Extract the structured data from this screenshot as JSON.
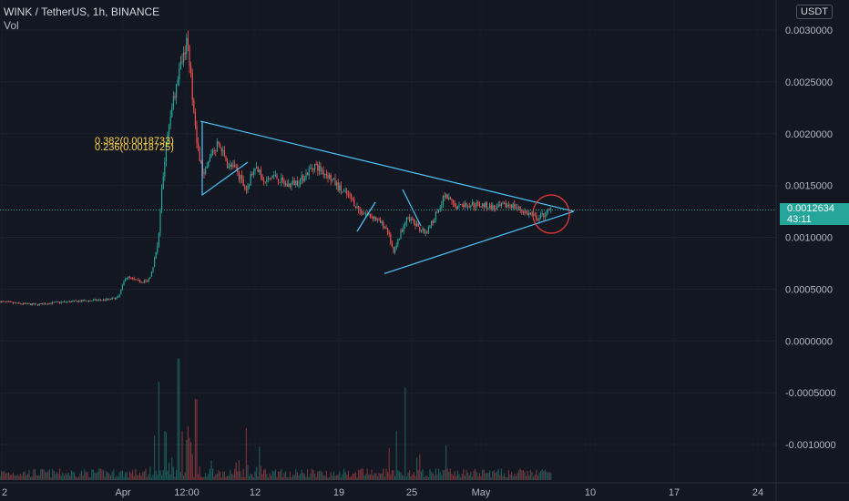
{
  "header": {
    "title": "WINK / TetherUS, 1h, BINANCE",
    "volume_label": "Vol",
    "currency_button": "USDT"
  },
  "price_tag": {
    "price": "0.0012634",
    "countdown": "43:11"
  },
  "fib_labels": [
    "0.382(0.0018733)",
    "0.236(0.0018725)"
  ],
  "colors": {
    "background": "#131722",
    "up": "#26a69a",
    "down": "#ef5350",
    "trendline": "#4fc3f7",
    "circle": "#e53935",
    "fib": "#ffd54f",
    "axis_text": "#b2b5be"
  },
  "chart_data": {
    "type": "candlestick",
    "title": "WINK / TetherUS, 1h, BINANCE",
    "y_axis": {
      "ticks": [
        "0.0030000",
        "0.0025000",
        "0.0020000",
        "0.0015000",
        "0.0010000",
        "0.0005000",
        "0.0000000",
        "-0.0005000",
        "-0.0010000"
      ],
      "tick_values": [
        0.003,
        0.0025,
        0.002,
        0.0015,
        0.001,
        0.0005,
        0,
        -0.0005,
        -0.001
      ],
      "range": [
        -0.00147,
        0.00323
      ]
    },
    "x_axis": {
      "ticks": [
        "2",
        "Apr",
        "12:00",
        "12",
        "19",
        "25",
        "May",
        "10",
        "17",
        "24"
      ]
    },
    "last_price": 0.0012634,
    "price_path": [
      [
        0,
        0.00038
      ],
      [
        20,
        0.00036
      ],
      [
        40,
        0.00035
      ],
      [
        60,
        0.00037
      ],
      [
        80,
        0.00038
      ],
      [
        100,
        0.00039
      ],
      [
        120,
        0.0004
      ],
      [
        130,
        0.00042
      ],
      [
        138,
        0.00062
      ],
      [
        150,
        0.00058
      ],
      [
        162,
        0.00057
      ],
      [
        168,
        0.0007
      ],
      [
        174,
        0.001
      ],
      [
        178,
        0.0015
      ],
      [
        184,
        0.002
      ],
      [
        190,
        0.0023
      ],
      [
        196,
        0.0026
      ],
      [
        201,
        0.0027
      ],
      [
        205,
        0.0029
      ],
      [
        210,
        0.0025
      ],
      [
        216,
        0.0019
      ],
      [
        224,
        0.00158
      ],
      [
        232,
        0.0018
      ],
      [
        240,
        0.0019
      ],
      [
        250,
        0.0017
      ],
      [
        260,
        0.00165
      ],
      [
        270,
        0.00145
      ],
      [
        280,
        0.0017
      ],
      [
        290,
        0.00152
      ],
      [
        300,
        0.0016
      ],
      [
        315,
        0.0015
      ],
      [
        330,
        0.00155
      ],
      [
        345,
        0.0017
      ],
      [
        360,
        0.0016
      ],
      [
        375,
        0.00145
      ],
      [
        385,
        0.00138
      ],
      [
        395,
        0.00125
      ],
      [
        410,
        0.0012
      ],
      [
        425,
        0.00108
      ],
      [
        432,
        0.00085
      ],
      [
        440,
        0.00105
      ],
      [
        448,
        0.0012
      ],
      [
        458,
        0.0011
      ],
      [
        468,
        0.00103
      ],
      [
        478,
        0.00122
      ],
      [
        488,
        0.0014
      ],
      [
        500,
        0.0013
      ],
      [
        515,
        0.00132
      ],
      [
        530,
        0.00131
      ],
      [
        545,
        0.00128
      ],
      [
        560,
        0.00132
      ],
      [
        575,
        0.00125
      ],
      [
        590,
        0.00118
      ],
      [
        605,
        0.0012634
      ]
    ],
    "trendlines": [
      {
        "from": [
          220,
          0.00212
        ],
        "to": [
          630,
          0.00125
        ]
      },
      {
        "from": [
          422,
          0.00065
        ],
        "to": [
          630,
          0.00125
        ]
      }
    ],
    "volume_spikes": [
      [
        174,
        0.00085
      ],
      [
        196,
        0.00105
      ],
      [
        215,
        0.0007
      ],
      [
        270,
        0.00045
      ],
      [
        445,
        0.0008
      ],
      [
        490,
        0.0003
      ]
    ]
  }
}
